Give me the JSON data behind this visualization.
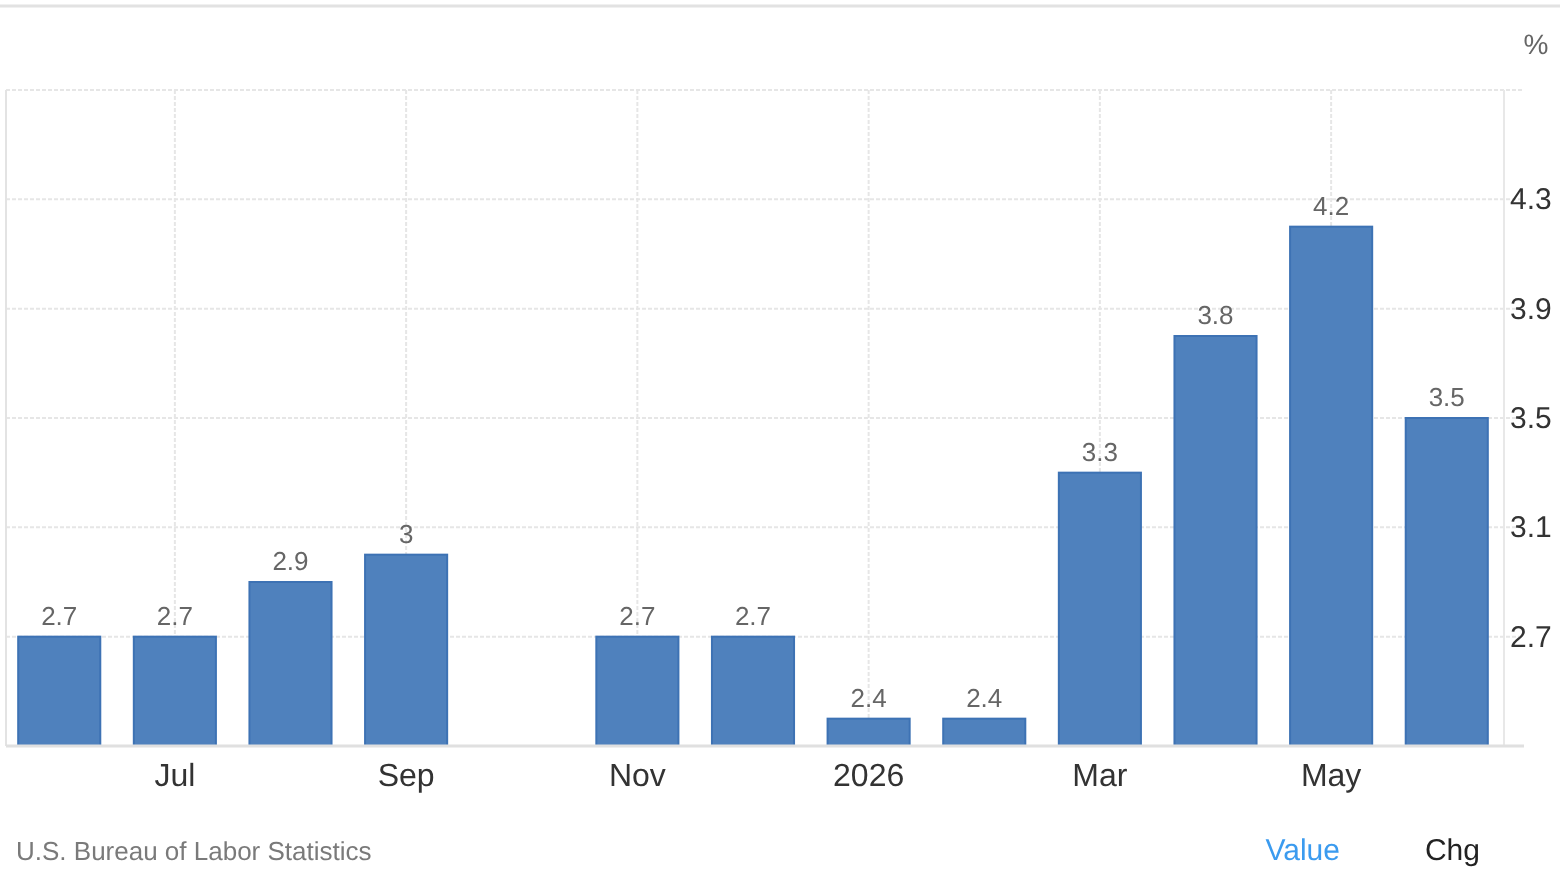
{
  "chart_data": {
    "type": "bar",
    "ylabel": "%",
    "categories": [
      null,
      "Jul",
      null,
      "Sep",
      null,
      "Nov",
      null,
      "2026",
      null,
      "Mar",
      null,
      "May",
      null
    ],
    "values": [
      2.7,
      2.7,
      2.9,
      3,
      null,
      2.7,
      2.7,
      2.4,
      2.4,
      3.3,
      3.8,
      4.2,
      3.5
    ],
    "color": "#4f81bd",
    "ylim": [
      2.3,
      4.7
    ],
    "yticks": [
      2.7,
      3.1,
      3.5,
      3.9,
      4.3,
      {
        "value": 4.7,
        "label": null
      }
    ],
    "grid": true,
    "data_labels": true,
    "annotations": [
      "U.S. Bureau of Labor Statistics",
      "Value",
      "Chg"
    ]
  }
}
